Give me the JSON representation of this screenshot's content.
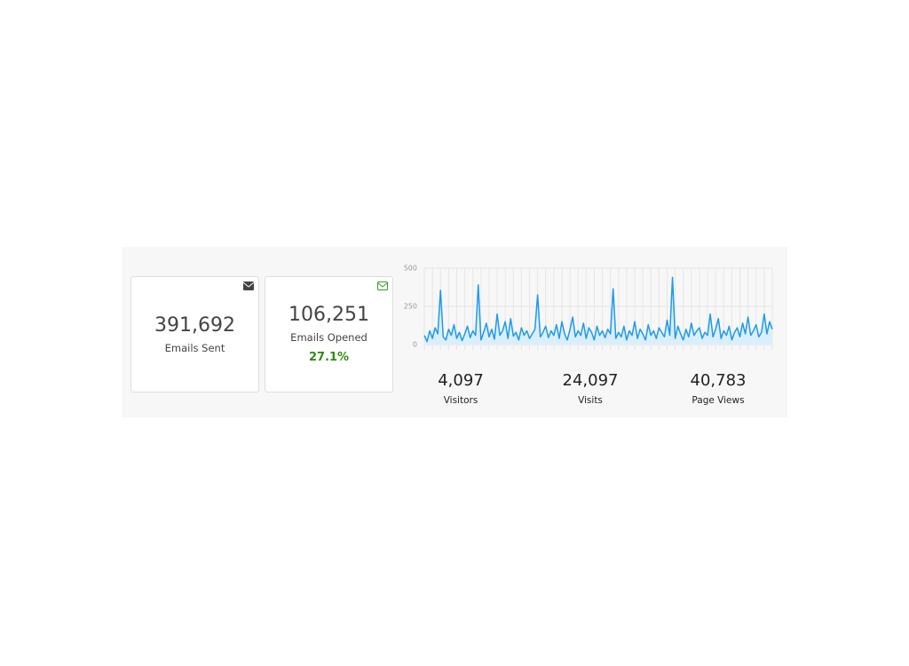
{
  "cards": [
    {
      "value": "391,692",
      "label": "Emails Sent"
    },
    {
      "value": "106,251",
      "label": "Emails Opened",
      "rate": "27.1%"
    }
  ],
  "chart_data": {
    "type": "line",
    "color": "#1e9be9",
    "fill": "#dbeefb",
    "values": [
      60,
      20,
      90,
      40,
      110,
      70,
      355,
      50,
      30,
      100,
      60,
      130,
      40,
      80,
      25,
      70,
      120,
      45,
      90,
      60,
      390,
      30,
      80,
      140,
      50,
      100,
      35,
      200,
      60,
      90,
      150,
      40,
      170,
      55,
      80,
      30,
      110,
      60,
      90,
      40,
      70,
      100,
      325,
      50,
      80,
      120,
      45,
      90,
      60,
      130,
      40,
      150,
      70,
      30,
      100,
      180,
      50,
      90,
      60,
      140,
      40,
      110,
      80,
      30,
      120,
      60,
      90,
      45,
      100,
      70,
      365,
      40,
      80,
      50,
      120,
      30,
      90,
      60,
      150,
      40,
      100,
      70,
      30,
      130,
      60,
      90,
      40,
      110,
      80,
      50,
      160,
      60,
      440,
      40,
      120,
      70,
      30,
      100,
      50,
      140,
      60,
      90,
      110,
      40,
      80,
      60,
      200,
      50,
      100,
      170,
      40,
      90,
      60,
      120,
      30,
      80,
      110,
      50,
      140,
      70,
      180,
      60,
      90,
      130,
      50,
      80,
      200,
      70,
      150,
      100
    ],
    "ylim": [
      0,
      500
    ],
    "yticks": [
      0,
      250,
      500
    ],
    "grid": true
  },
  "stats": [
    {
      "value": "4,097",
      "label": "Visitors"
    },
    {
      "value": "24,097",
      "label": "Visits"
    },
    {
      "value": "40,783",
      "label": "Page Views"
    }
  ]
}
